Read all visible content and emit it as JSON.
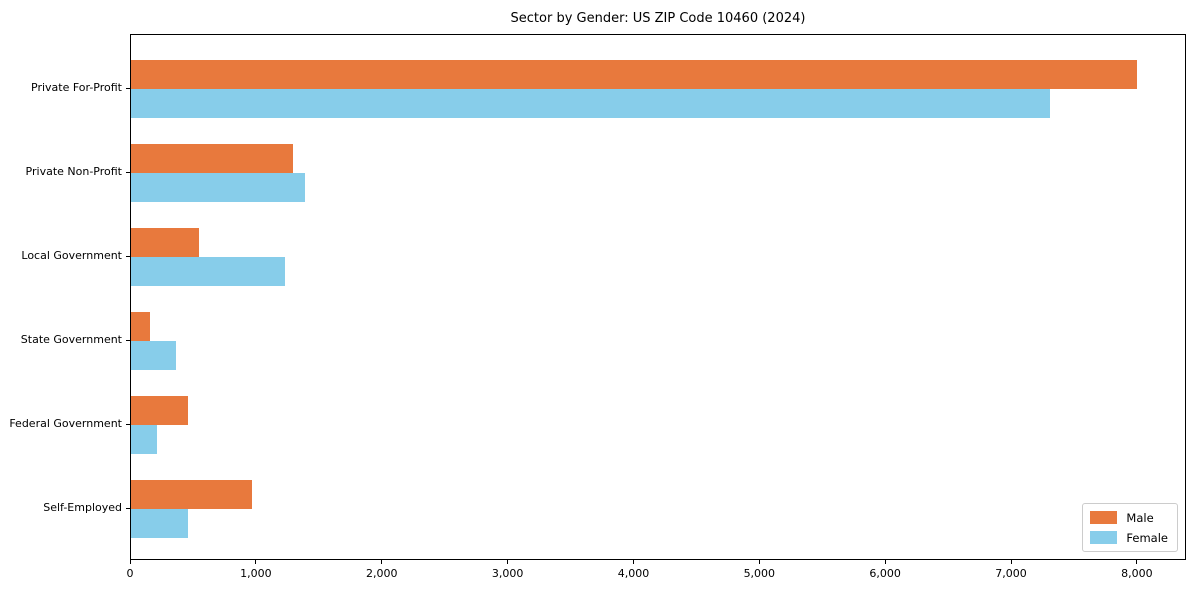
{
  "chart_data": {
    "type": "bar",
    "orientation": "horizontal",
    "title": "Sector by Gender: US ZIP Code 10460 (2024)",
    "categories": [
      "Private For-Profit",
      "Private Non-Profit",
      "Local Government",
      "State Government",
      "Federal Government",
      "Self-Employed"
    ],
    "series": [
      {
        "name": "Male",
        "color": "#E8793D",
        "values": [
          7990,
          1285,
          540,
          150,
          450,
          960
        ]
      },
      {
        "name": "Female",
        "color": "#87CDEA",
        "values": [
          7300,
          1385,
          1220,
          360,
          210,
          455
        ]
      }
    ],
    "xlabel": "",
    "ylabel": "",
    "xlim": [
      0,
      8390
    ],
    "x_ticks": [
      0,
      1000,
      2000,
      3000,
      4000,
      5000,
      6000,
      7000,
      8000
    ],
    "x_tick_labels": [
      "0",
      "1,000",
      "2,000",
      "3,000",
      "4,000",
      "5,000",
      "6,000",
      "7,000",
      "8,000"
    ],
    "legend_position": "lower right",
    "grid": false,
    "axis_color": "#000000",
    "background_color": "#ffffff"
  }
}
